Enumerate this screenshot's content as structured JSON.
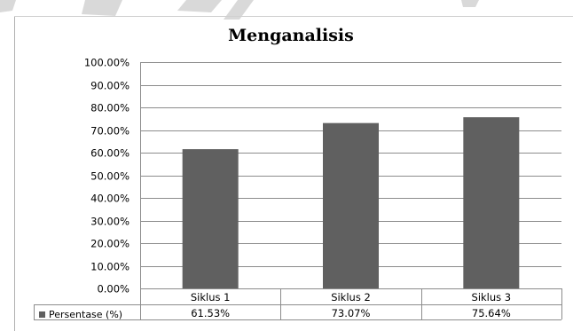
{
  "chart_data": {
    "type": "bar",
    "title": "Menganalisis",
    "categories": [
      "Siklus 1",
      "Siklus 2",
      "Siklus 3"
    ],
    "series": [
      {
        "name": "Persentase (%)",
        "values": [
          61.53,
          73.07,
          75.64
        ]
      }
    ],
    "value_labels": [
      "61.53%",
      "73.07%",
      "75.64%"
    ],
    "ylim": [
      0,
      100
    ],
    "y_ticks": [
      "0.00%",
      "10.00%",
      "20.00%",
      "30.00%",
      "40.00%",
      "50.00%",
      "60.00%",
      "70.00%",
      "80.00%",
      "90.00%",
      "100.00%"
    ],
    "grid": true,
    "legend": "data-table",
    "colors": {
      "bar": "#606060",
      "grid": "#8c8c8c",
      "table_border": "#8c8c8c",
      "text": "#000000"
    }
  }
}
